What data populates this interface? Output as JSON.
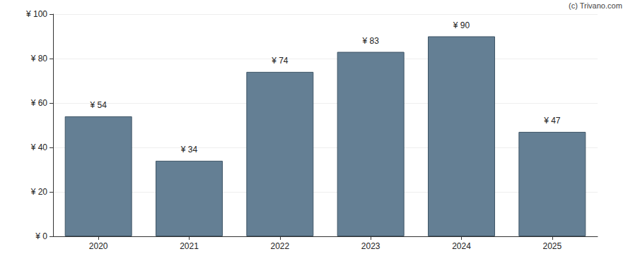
{
  "chart_data": {
    "type": "bar",
    "annotation": "(c) Trivano.com",
    "categories": [
      "2020",
      "2021",
      "2022",
      "2023",
      "2024",
      "2025"
    ],
    "values": [
      54,
      34,
      74,
      83,
      90,
      47
    ],
    "value_labels": [
      "¥ 54",
      "¥ 34",
      "¥ 74",
      "¥ 83",
      "¥ 90",
      "¥ 47"
    ],
    "data_labels": true,
    "color": "#647f94",
    "ylim": [
      0,
      100
    ],
    "yticks": [
      {
        "value": 0,
        "label": "¥ 0"
      },
      {
        "value": 20,
        "label": "¥ 20"
      },
      {
        "value": 40,
        "label": "¥ 40"
      },
      {
        "value": 60,
        "label": "¥ 60"
      },
      {
        "value": 80,
        "label": "¥ 80"
      },
      {
        "value": 100,
        "label": "¥ 100"
      }
    ],
    "grid": true
  }
}
